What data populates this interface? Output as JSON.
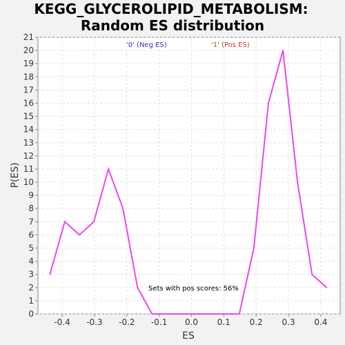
{
  "chart_data": {
    "type": "line",
    "title_line1": "KEGG_GLYCEROLIPID_METABOLISM:",
    "title_line2": "Random ES distribution",
    "xlabel": "ES",
    "ylabel": "P(ES)",
    "xlim": [
      -0.475,
      0.46
    ],
    "ylim": [
      0,
      21
    ],
    "x_ticks": [
      -0.4,
      -0.3,
      -0.2,
      -0.1,
      0.0,
      0.1,
      0.2,
      0.3,
      0.4
    ],
    "x_tick_labels": [
      "-0.4",
      "-0.3",
      "-0.2",
      "-0.1",
      "0.0",
      "0.1",
      "0.2",
      "0.3",
      "0.4"
    ],
    "y_ticks": [
      0,
      1,
      2,
      3,
      4,
      5,
      6,
      7,
      8,
      9,
      10,
      11,
      12,
      13,
      14,
      15,
      16,
      17,
      18,
      19,
      20,
      21
    ],
    "grid": true,
    "legend": [
      {
        "label": "'0' (Neg ES)",
        "color": "#3333cc"
      },
      {
        "label": "'1' (Pos ES)",
        "color": "#cc3333"
      }
    ],
    "annotation": "Sets with pos scores: 56%",
    "series": [
      {
        "color": "#ee44ee",
        "x": [
          -0.438,
          -0.392,
          -0.347,
          -0.302,
          -0.257,
          -0.212,
          -0.167,
          -0.122,
          -0.077,
          -0.032,
          0.013,
          0.058,
          0.103,
          0.148,
          0.193,
          0.238,
          0.283,
          0.328,
          0.373,
          0.418
        ],
        "y": [
          3,
          7,
          6,
          7,
          11,
          8,
          2,
          0,
          0,
          0,
          0,
          0,
          0,
          0,
          5,
          16,
          20,
          10,
          3,
          2
        ]
      }
    ]
  }
}
